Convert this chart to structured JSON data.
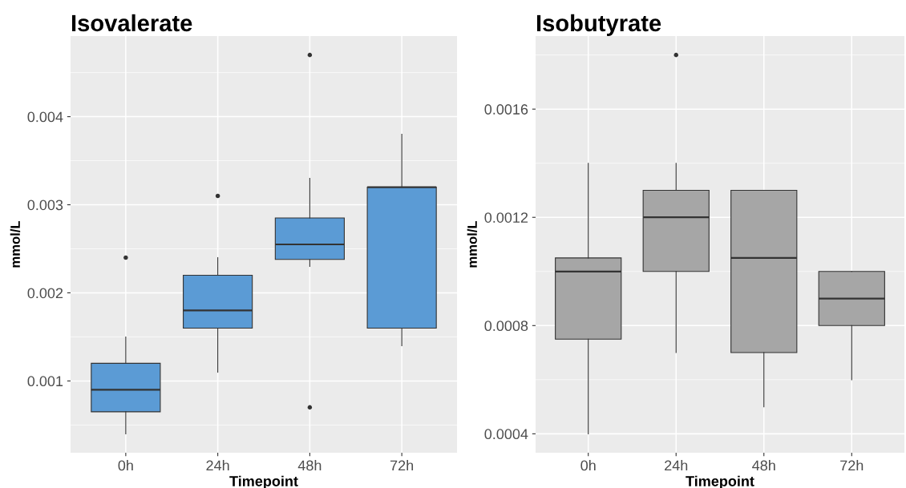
{
  "chart_data": [
    {
      "type": "box",
      "title": "Isovalerate",
      "xlabel": "Timepoint",
      "ylabel": "mmol/L",
      "categories": [
        "0h",
        "24h",
        "48h",
        "72h"
      ],
      "ylim": [
        0.000185,
        0.004915
      ],
      "yticks": [
        0.001,
        0.002,
        0.003,
        0.004
      ],
      "grid": true,
      "series": [
        {
          "color": "#5b9bd5",
          "boxes": [
            {
              "low": 0.0004,
              "q1": 0.00065,
              "median": 0.0009,
              "q3": 0.0012,
              "high": 0.0015,
              "outliers": [
                0.0024
              ]
            },
            {
              "low": 0.0011,
              "q1": 0.0016,
              "median": 0.0018,
              "q3": 0.0022,
              "high": 0.0024,
              "outliers": [
                0.0031
              ]
            },
            {
              "low": 0.0023,
              "q1": 0.00238,
              "median": 0.00255,
              "q3": 0.00285,
              "high": 0.0033,
              "outliers": [
                0.0047,
                0.0007
              ]
            },
            {
              "low": 0.0014,
              "q1": 0.0016,
              "median": 0.0032,
              "q3": 0.0032,
              "high": 0.0038
            }
          ]
        }
      ]
    },
    {
      "type": "box",
      "title": "Isobutyrate",
      "xlabel": "Timepoint",
      "ylabel": "mmol/L",
      "categories": [
        "0h",
        "24h",
        "48h",
        "72h"
      ],
      "ylim": [
        0.00033,
        0.00187
      ],
      "yticks": [
        0.0004,
        0.0008,
        0.0012,
        0.0016
      ],
      "grid": true,
      "series": [
        {
          "color": "#a6a6a6",
          "boxes": [
            {
              "low": 0.0004,
              "q1": 0.00075,
              "median": 0.001,
              "q3": 0.00105,
              "high": 0.0014
            },
            {
              "low": 0.0007,
              "q1": 0.001,
              "median": 0.0012,
              "q3": 0.0013,
              "high": 0.0014,
              "outliers": [
                0.0018
              ]
            },
            {
              "low": 0.0005,
              "q1": 0.0007,
              "median": 0.00105,
              "q3": 0.0013,
              "high": 0.0013
            },
            {
              "low": 0.0006,
              "q1": 0.0008,
              "median": 0.0009,
              "q3": 0.001,
              "high": 0.001
            }
          ]
        }
      ]
    }
  ]
}
